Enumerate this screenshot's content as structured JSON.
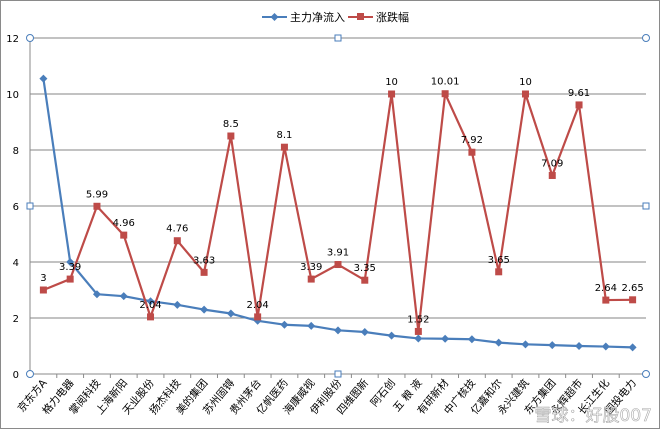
{
  "chart_data": {
    "type": "line",
    "title": "",
    "xlabel": "",
    "ylabel": "",
    "ylim": [
      0,
      12
    ],
    "yticks": [
      0,
      2,
      4,
      6,
      8,
      10,
      12
    ],
    "grid": true,
    "legend_position": "top",
    "categories": [
      "京东方A",
      "格力电器",
      "掌阅科技",
      "上海新阳",
      "天业股份",
      "扬杰科技",
      "美的集团",
      "苏州固锝",
      "贵州茅台",
      "亿帆医药",
      "海康威视",
      "伊利股份",
      "四维图新",
      "阿石创",
      "五 粮 液",
      "有研新材",
      "中广核技",
      "亿嘉和尔",
      "永兴建筑",
      "东方集团",
      "永辉超市",
      "长江生化",
      "国投电力"
    ],
    "series": [
      {
        "name": "主力净流入",
        "color": "#4a7ebb",
        "marker": "diamond",
        "show_labels": false,
        "values": [
          10.55,
          4.0,
          2.85,
          2.78,
          2.6,
          2.47,
          2.3,
          2.16,
          1.9,
          1.76,
          1.72,
          1.56,
          1.5,
          1.37,
          1.27,
          1.26,
          1.24,
          1.12,
          1.06,
          1.03,
          1.0,
          0.98,
          0.95
        ]
      },
      {
        "name": "涨跌幅",
        "color": "#be4b48",
        "marker": "square",
        "show_labels": true,
        "values": [
          3,
          3.39,
          5.99,
          4.96,
          2.04,
          4.76,
          3.63,
          8.5,
          2.04,
          8.1,
          3.39,
          3.91,
          3.35,
          10,
          1.52,
          10.01,
          7.92,
          3.65,
          10,
          7.09,
          9.61,
          2.64,
          2.65
        ]
      }
    ]
  },
  "watermark": "雪球：好股007"
}
